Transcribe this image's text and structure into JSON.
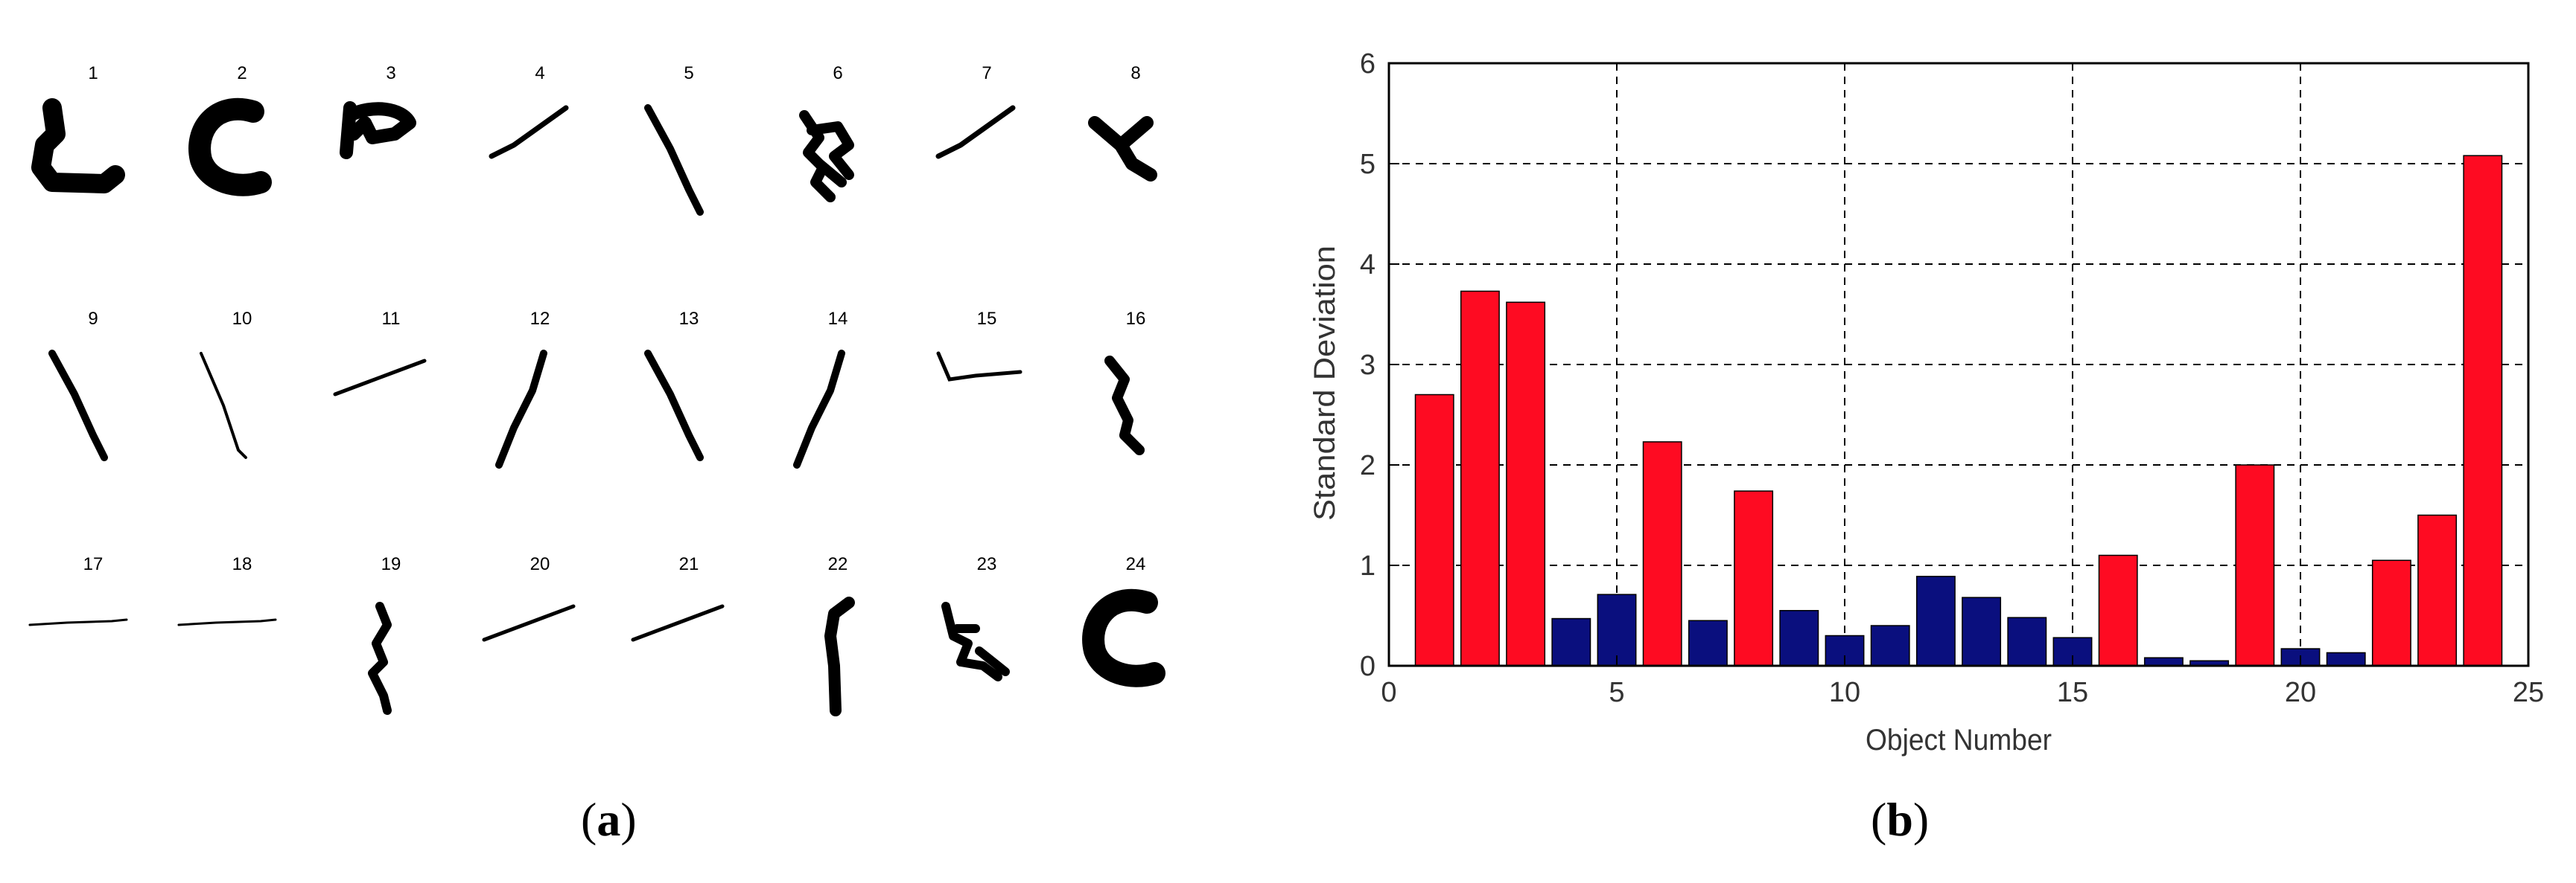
{
  "panel_a": {
    "objects": [
      {
        "label": "1",
        "shape": "hook"
      },
      {
        "label": "2",
        "shape": "c-thick"
      },
      {
        "label": "3",
        "shape": "loop"
      },
      {
        "label": "4",
        "shape": "line-up"
      },
      {
        "label": "5",
        "shape": "line-down"
      },
      {
        "label": "6",
        "shape": "cluster"
      },
      {
        "label": "7",
        "shape": "line-up"
      },
      {
        "label": "8",
        "shape": "branch"
      },
      {
        "label": "9",
        "shape": "line-down"
      },
      {
        "label": "10",
        "shape": "line-down-thin"
      },
      {
        "label": "11",
        "shape": "line-up-flat"
      },
      {
        "label": "12",
        "shape": "line-up-steep"
      },
      {
        "label": "13",
        "shape": "line-down"
      },
      {
        "label": "14",
        "shape": "line-up-steep"
      },
      {
        "label": "15",
        "shape": "check-flat"
      },
      {
        "label": "16",
        "shape": "zigzag"
      },
      {
        "label": "17",
        "shape": "flat-thin"
      },
      {
        "label": "18",
        "shape": "flat-thin"
      },
      {
        "label": "19",
        "shape": "vertical-wiggle"
      },
      {
        "label": "20",
        "shape": "line-up-flat"
      },
      {
        "label": "21",
        "shape": "line-up-flat"
      },
      {
        "label": "22",
        "shape": "vertical-hook"
      },
      {
        "label": "23",
        "shape": "cluster-low"
      },
      {
        "label": "24",
        "shape": "c-thick"
      }
    ],
    "caption_prefix": "(",
    "caption_letter": "a",
    "caption_suffix": ")"
  },
  "panel_b": {
    "caption_prefix": "(",
    "caption_letter": "b",
    "caption_suffix": ")"
  },
  "chart_data": {
    "type": "bar",
    "title": "",
    "xlabel": "Object Number",
    "ylabel": "Standard  Deviation",
    "xlim": [
      0,
      25
    ],
    "ylim": [
      0,
      6
    ],
    "x_ticks": [
      0,
      5,
      10,
      15,
      20,
      25
    ],
    "y_ticks": [
      0,
      1,
      2,
      3,
      4,
      5,
      6
    ],
    "grid": true,
    "grid_style": "dashed",
    "colors": {
      "red": "#fe0b22",
      "blue": "#0a0f7e"
    },
    "categories": [
      1,
      2,
      3,
      4,
      5,
      6,
      7,
      8,
      9,
      10,
      11,
      12,
      13,
      14,
      15,
      16,
      17,
      18,
      19,
      20,
      21,
      22,
      23,
      24
    ],
    "values": [
      2.7,
      3.73,
      3.62,
      0.47,
      0.71,
      2.23,
      0.45,
      1.74,
      0.55,
      0.3,
      0.4,
      0.89,
      0.68,
      0.48,
      0.28,
      1.1,
      0.08,
      0.05,
      2.0,
      0.17,
      0.13,
      1.05,
      1.5,
      5.08
    ],
    "bar_colors": [
      "red",
      "red",
      "red",
      "blue",
      "blue",
      "red",
      "blue",
      "red",
      "blue",
      "blue",
      "blue",
      "blue",
      "blue",
      "blue",
      "blue",
      "red",
      "blue",
      "blue",
      "red",
      "blue",
      "blue",
      "red",
      "red",
      "red"
    ]
  }
}
